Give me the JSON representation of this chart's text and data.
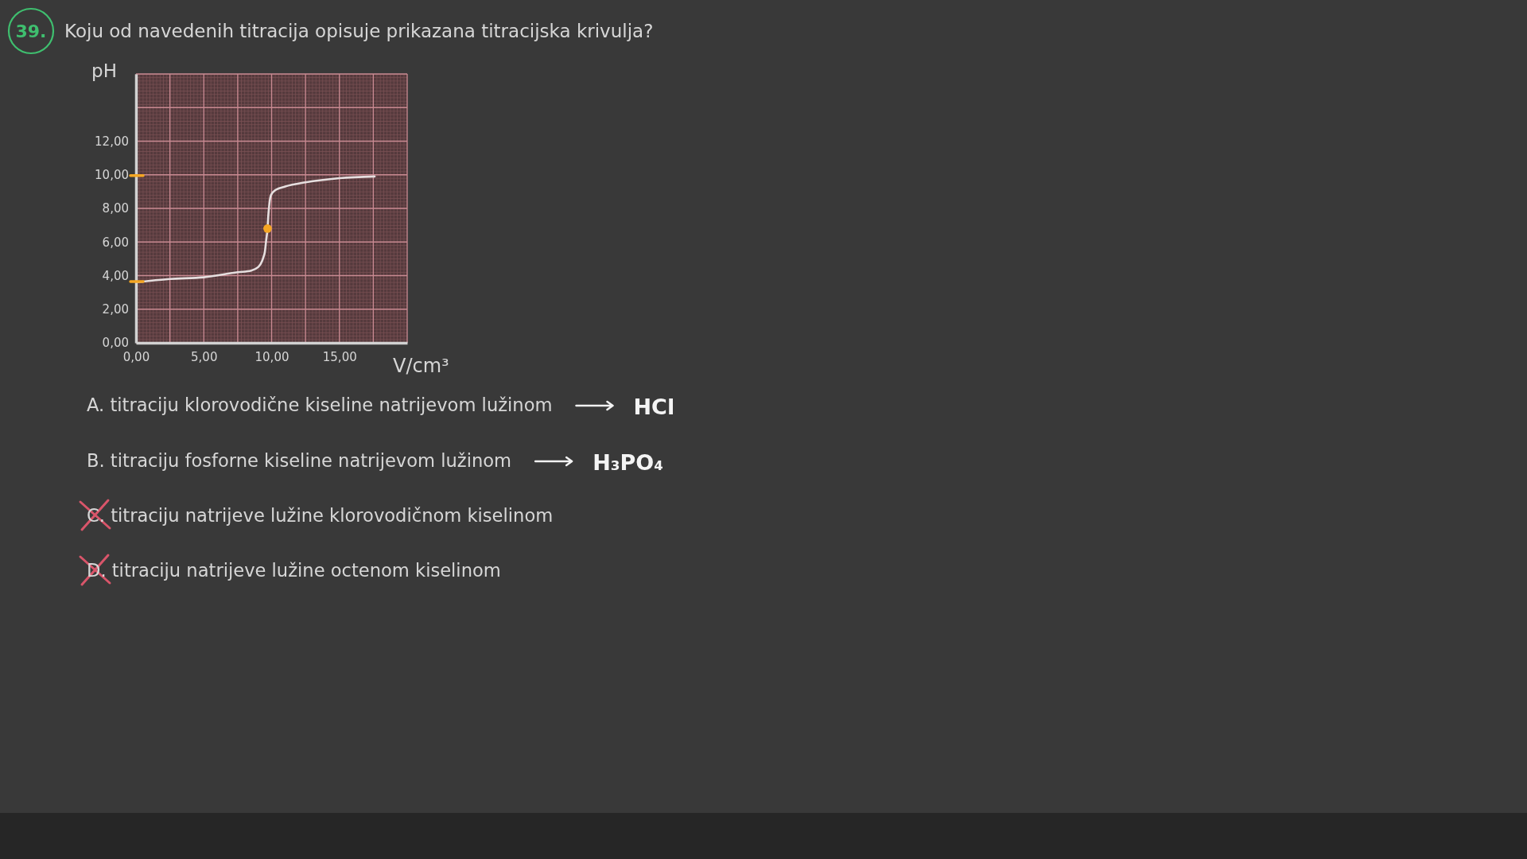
{
  "chart_data": {
    "type": "line",
    "title": "Koju od navedenih titracija opisuje prikazana titracijska krivulja?",
    "xlabel": "V/cm³",
    "ylabel": "pH",
    "annotations": [
      "39.",
      "A. titraciju klorovodične kiseline natrijevom lužinom",
      "HCl",
      "B. titraciju fosforne kiseline natrijevom lužinom",
      "H₃PO₄",
      "C. titraciju natrijeve lužine klorovodičnom kiselinom",
      "D. titraciju natrijeve lužine octenom kiselinom"
    ],
    "xlim": [
      0,
      20
    ],
    "ylim": [
      0,
      16
    ],
    "xticks": [
      {
        "value": 0,
        "label": "0,00"
      },
      {
        "value": 2.5,
        "label": null
      },
      {
        "value": 5,
        "label": "5,00"
      },
      {
        "value": 7.5,
        "label": null
      },
      {
        "value": 10,
        "label": "10,00"
      },
      {
        "value": 12.5,
        "label": null
      },
      {
        "value": 15,
        "label": "15,00"
      },
      {
        "value": 17.5,
        "label": null
      },
      {
        "value": 20,
        "label": null
      }
    ],
    "yticks": [
      {
        "value": 0,
        "label": "0,00"
      },
      {
        "value": 2,
        "label": "2,00"
      },
      {
        "value": 4,
        "label": "4,00"
      },
      {
        "value": 6,
        "label": "6,00"
      },
      {
        "value": 8,
        "label": "8,00"
      },
      {
        "value": 10,
        "label": "10,00"
      },
      {
        "value": 12,
        "label": "12,00"
      },
      {
        "value": 14,
        "label": null
      },
      {
        "value": 16,
        "label": null
      }
    ],
    "grid": true,
    "series": [
      {
        "color": "#e6dfdf",
        "x": [
          0,
          2.5,
          5,
          7.5,
          8.5,
          9.0,
          9.2,
          9.4,
          9.5,
          9.6,
          9.7,
          9.76,
          9.84,
          9.96,
          10.3,
          11,
          12.5,
          15,
          17.6
        ],
        "values": [
          3.6,
          3.8,
          3.9,
          4.2,
          4.3,
          4.5,
          4.7,
          5.1,
          5.4,
          6.1,
          6.8,
          7.6,
          8.3,
          8.8,
          9.1,
          9.3,
          9.55,
          9.8,
          9.9
        ]
      },
      {
        "type": "scatter",
        "color": "#f5a623",
        "x": [
          9.7
        ],
        "values": [
          6.8
        ],
        "marker": "circle"
      }
    ]
  }
}
